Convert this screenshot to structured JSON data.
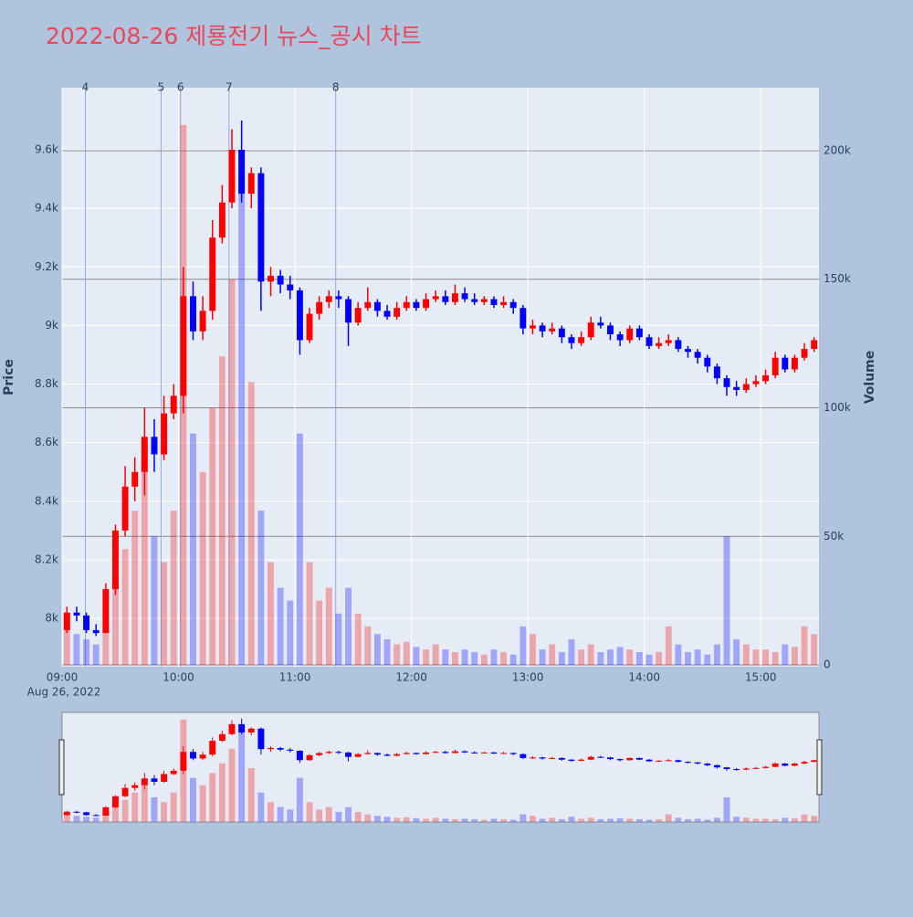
{
  "chart_data": {
    "type": "candlestick",
    "title": "2022-08-26 제룡전기 뉴스_공시 차트",
    "y_title": "Price",
    "y2_title": "Volume",
    "x_sublabel": "Aug 26, 2022",
    "up_color": "#ff0000",
    "down_color": "#0000ff",
    "xlim": [
      "09:00",
      "15:30"
    ],
    "xticks": [
      "09:00",
      "10:00",
      "11:00",
      "12:00",
      "13:00",
      "14:00",
      "15:00"
    ],
    "ylim": [
      7835,
      9812
    ],
    "yticks": [
      {
        "value": 8000,
        "label": "8k"
      },
      {
        "value": 8200,
        "label": "8.2k"
      },
      {
        "value": 8400,
        "label": "8.4k"
      },
      {
        "value": 8600,
        "label": "8.6k"
      },
      {
        "value": 8800,
        "label": "8.8k"
      },
      {
        "value": 9000,
        "label": "9k"
      },
      {
        "value": 9200,
        "label": "9.2k"
      },
      {
        "value": 9400,
        "label": "9.4k"
      },
      {
        "value": 9600,
        "label": "9.6k"
      }
    ],
    "y2lim": [
      -700,
      224500
    ],
    "y2ticks": [
      0,
      {
        "value": 50000,
        "label": "50k"
      },
      {
        "value": 100000,
        "label": "100k"
      },
      {
        "value": 150000,
        "label": "150k"
      },
      {
        "value": 200000,
        "label": "200k"
      }
    ],
    "events": [
      {
        "x": "09:12",
        "label": "4"
      },
      {
        "x": "09:51",
        "label": "5"
      },
      {
        "x": "10:01",
        "label": "6"
      },
      {
        "x": "10:26",
        "label": "7"
      },
      {
        "x": "11:21",
        "label": "8"
      }
    ],
    "x": [
      "09:00",
      "09:05",
      "09:10",
      "09:15",
      "09:20",
      "09:25",
      "09:30",
      "09:35",
      "09:40",
      "09:45",
      "09:50",
      "09:55",
      "10:00",
      "10:05",
      "10:10",
      "10:15",
      "10:20",
      "10:25",
      "10:30",
      "10:35",
      "10:40",
      "10:45",
      "10:50",
      "10:55",
      "11:00",
      "11:05",
      "11:10",
      "11:15",
      "11:20",
      "11:25",
      "11:30",
      "11:35",
      "11:40",
      "11:45",
      "11:50",
      "11:55",
      "12:00",
      "12:05",
      "12:10",
      "12:15",
      "12:20",
      "12:25",
      "12:30",
      "12:35",
      "12:40",
      "12:45",
      "12:50",
      "12:55",
      "13:00",
      "13:05",
      "13:10",
      "13:15",
      "13:20",
      "13:25",
      "13:30",
      "13:35",
      "13:40",
      "13:45",
      "13:50",
      "13:55",
      "14:00",
      "14:05",
      "14:10",
      "14:15",
      "14:20",
      "14:25",
      "14:30",
      "14:35",
      "14:40",
      "14:45",
      "14:50",
      "14:55",
      "15:00",
      "15:05",
      "15:10",
      "15:15",
      "15:20",
      "15:25"
    ],
    "open": [
      7960,
      8020,
      8010,
      7960,
      7950,
      8100,
      8300,
      8450,
      8500,
      8620,
      8560,
      8700,
      8760,
      9100,
      8980,
      9050,
      9300,
      9420,
      9600,
      9450,
      9520,
      9150,
      9170,
      9140,
      9120,
      8950,
      9040,
      9080,
      9100,
      9090,
      9010,
      9060,
      9080,
      9050,
      9030,
      9060,
      9080,
      9060,
      9090,
      9100,
      9080,
      9110,
      9090,
      9080,
      9090,
      9070,
      9080,
      9060,
      8990,
      9000,
      8980,
      8990,
      8960,
      8940,
      8960,
      9010,
      9000,
      8970,
      8950,
      8990,
      8960,
      8930,
      8940,
      8950,
      8920,
      8910,
      8890,
      8860,
      8820,
      8790,
      8780,
      8800,
      8810,
      8830,
      8890,
      8850,
      8890,
      8920
    ],
    "high": [
      8040,
      8040,
      8020,
      7980,
      8120,
      8320,
      8520,
      8550,
      8720,
      8680,
      8760,
      8800,
      9200,
      9150,
      9100,
      9360,
      9480,
      9670,
      9700,
      9540,
      9540,
      9200,
      9190,
      9170,
      9130,
      9060,
      9100,
      9120,
      9120,
      9100,
      9080,
      9130,
      9090,
      9070,
      9080,
      9100,
      9090,
      9110,
      9120,
      9120,
      9140,
      9130,
      9110,
      9100,
      9100,
      9100,
      9090,
      9070,
      9020,
      9010,
      9010,
      9000,
      8970,
      8980,
      9030,
      9030,
      9010,
      8980,
      9000,
      9000,
      8970,
      8960,
      8970,
      8960,
      8930,
      8920,
      8900,
      8870,
      8830,
      8810,
      8820,
      8830,
      8850,
      8910,
      8900,
      8900,
      8940,
      8960
    ],
    "low": [
      7950,
      7990,
      7950,
      7940,
      7950,
      8080,
      8280,
      8400,
      8420,
      8500,
      8540,
      8680,
      8700,
      8950,
      8950,
      9020,
      9280,
      9400,
      9420,
      9400,
      9050,
      9100,
      9110,
      9090,
      8900,
      8940,
      9020,
      9060,
      9060,
      8930,
      9000,
      9050,
      9030,
      9020,
      9020,
      9050,
      9050,
      9050,
      9080,
      9070,
      9070,
      9080,
      9070,
      9070,
      9060,
      9060,
      9040,
      8970,
      8970,
      8960,
      8970,
      8940,
      8920,
      8930,
      8950,
      8990,
      8950,
      8930,
      8940,
      8950,
      8920,
      8920,
      8930,
      8910,
      8890,
      8870,
      8840,
      8800,
      8760,
      8760,
      8770,
      8790,
      8800,
      8820,
      8840,
      8840,
      8880,
      8910
    ],
    "close": [
      8020,
      8010,
      7960,
      7950,
      8100,
      8300,
      8450,
      8500,
      8620,
      8560,
      8700,
      8760,
      9100,
      8980,
      9050,
      9300,
      9420,
      9600,
      9450,
      9520,
      9150,
      9170,
      9140,
      9120,
      8950,
      9040,
      9080,
      9100,
      9090,
      9010,
      9060,
      9080,
      9050,
      9030,
      9060,
      9080,
      9060,
      9090,
      9100,
      9080,
      9110,
      9090,
      9080,
      9090,
      9070,
      9080,
      9060,
      8990,
      9000,
      8980,
      8990,
      8960,
      8940,
      8960,
      9010,
      9000,
      8970,
      8950,
      8990,
      8960,
      8930,
      8940,
      8950,
      8920,
      8910,
      8890,
      8860,
      8820,
      8790,
      8780,
      8800,
      8810,
      8830,
      8890,
      8850,
      8890,
      8920,
      8950
    ],
    "volume": [
      20000,
      12000,
      10000,
      8000,
      15000,
      35000,
      45000,
      60000,
      80000,
      50000,
      40000,
      60000,
      210000,
      90000,
      75000,
      100000,
      120000,
      150000,
      200000,
      110000,
      60000,
      40000,
      30000,
      25000,
      90000,
      40000,
      25000,
      30000,
      20000,
      30000,
      20000,
      15000,
      12000,
      10000,
      8000,
      9000,
      7000,
      6000,
      8000,
      6000,
      5000,
      6000,
      5000,
      4000,
      6000,
      5000,
      4000,
      15000,
      12000,
      6000,
      8000,
      5000,
      10000,
      6000,
      8000,
      5000,
      6000,
      7000,
      6000,
      5000,
      4000,
      5000,
      15000,
      8000,
      5000,
      6000,
      4000,
      8000,
      50000,
      10000,
      8000,
      6000,
      6000,
      5000,
      8000,
      7000,
      15000,
      12000
    ]
  }
}
